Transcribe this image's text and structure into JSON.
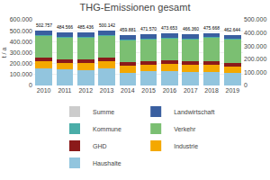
{
  "chart_data": {
    "type": "bar",
    "stacked": true,
    "title": "THG-Emissionen gesamt",
    "ylabel": "t / a",
    "categories": [
      "2010",
      "2011",
      "2012",
      "2013",
      "2014",
      "2015",
      "2016",
      "2017",
      "2018",
      "2019"
    ],
    "series": [
      {
        "name": "Haushalte",
        "color": "#92C5DE",
        "values": [
          158000,
          145000,
          142000,
          158000,
          118000,
          130000,
          134000,
          124000,
          127000,
          114000
        ]
      },
      {
        "name": "Industrie",
        "color": "#F4A800",
        "values": [
          62000,
          62000,
          62000,
          62000,
          62000,
          62000,
          62000,
          62000,
          62000,
          62000
        ]
      },
      {
        "name": "GHD",
        "color": "#8B1A1A",
        "values": [
          35000,
          35000,
          37000,
          37000,
          30000,
          33000,
          34000,
          33000,
          35000,
          33000
        ]
      },
      {
        "name": "Verkehr",
        "color": "#7BBF72",
        "values": [
          200000,
          195000,
          196000,
          195000,
          200000,
          198000,
          196000,
          200000,
          208000,
          207000
        ]
      },
      {
        "name": "Kommune",
        "color": "#4AADA8",
        "values": [
          8000,
          8000,
          8000,
          8000,
          8000,
          8000,
          8000,
          8000,
          8000,
          8000
        ]
      },
      {
        "name": "Landwirtschaft",
        "color": "#3A5FA0",
        "values": [
          39757,
          39566,
          40436,
          40142,
          41881,
          40570,
          39653,
          39360,
          35668,
          38644
        ]
      },
      {
        "name": "Summe",
        "color": "#CCCCCC",
        "values": [
          null,
          null,
          null,
          null,
          null,
          null,
          null,
          null,
          null,
          null
        ]
      }
    ],
    "totals": [
      502757,
      484566,
      485436,
      500142,
      459881,
      471570,
      473653,
      466360,
      475668,
      462644
    ],
    "total_labels": [
      "502.757",
      "484.566",
      "485.436",
      "500.142",
      "459.881",
      "471.570",
      "473.653",
      "466.360",
      "475.668",
      "462.644"
    ],
    "ylim": [
      0,
      600000
    ],
    "yticks": [
      0,
      {
        "value": 100000,
        "label": "100.000"
      },
      {
        "value": 200000,
        "label": "200.000"
      },
      {
        "value": 300000,
        "label": "300.000"
      },
      {
        "value": 400000,
        "label": "400.000"
      },
      {
        "value": 500000,
        "label": "500.000"
      },
      {
        "value": 600000,
        "label": "600.000"
      }
    ],
    "y2lim": [
      0,
      500000
    ],
    "y2ticks": [
      0,
      {
        "value": 100000,
        "label": "100.000"
      },
      {
        "value": 200000,
        "label": "200.000"
      },
      {
        "value": 300000,
        "label": "300.000"
      },
      {
        "value": 400000,
        "label": "400.000"
      },
      {
        "value": 500000,
        "label": "500.000"
      }
    ],
    "grid": true,
    "legend": "bottom"
  }
}
